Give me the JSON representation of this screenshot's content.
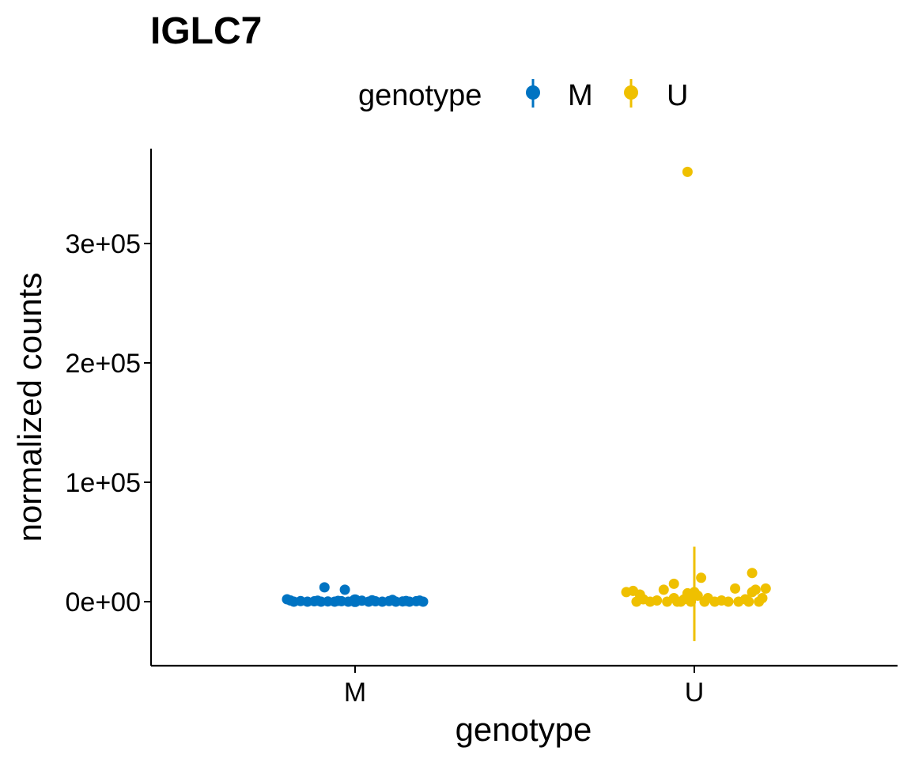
{
  "chart_data": {
    "type": "scatter",
    "title": "IGLC7",
    "xlabel": "genotype",
    "ylabel": "normalized counts",
    "categories": [
      "M",
      "U"
    ],
    "ylim": [
      -55000,
      380000
    ],
    "yticks": [
      0,
      100000,
      200000,
      300000
    ],
    "ytick_labels": [
      "0e+00",
      "1e+05",
      "2e+05",
      "3e+05"
    ],
    "grid": false,
    "legend": {
      "title": "genotype",
      "position": "top",
      "entries": [
        "M",
        "U"
      ]
    },
    "colors": {
      "M": "#0073C2",
      "U": "#EFC000"
    },
    "series": [
      {
        "name": "M",
        "summary": {
          "mean": 800,
          "lower": 0,
          "upper": 1500
        },
        "points": [
          {
            "x": -0.2,
            "y": 2000
          },
          {
            "x": -0.18,
            "y": 0
          },
          {
            "x": -0.16,
            "y": 500
          },
          {
            "x": -0.14,
            "y": 0
          },
          {
            "x": -0.12,
            "y": 300
          },
          {
            "x": -0.1,
            "y": 0
          },
          {
            "x": -0.08,
            "y": 200
          },
          {
            "x": -0.06,
            "y": 0
          },
          {
            "x": -0.09,
            "y": 12000
          },
          {
            "x": -0.04,
            "y": 400
          },
          {
            "x": -0.02,
            "y": 0
          },
          {
            "x": -0.03,
            "y": 10000
          },
          {
            "x": 0.0,
            "y": 0
          },
          {
            "x": 0.02,
            "y": 800
          },
          {
            "x": 0.04,
            "y": 0
          },
          {
            "x": 0.06,
            "y": 300
          },
          {
            "x": 0.08,
            "y": 0
          },
          {
            "x": 0.1,
            "y": 500
          },
          {
            "x": 0.11,
            "y": 1500
          },
          {
            "x": 0.12,
            "y": 0
          },
          {
            "x": 0.14,
            "y": 200
          },
          {
            "x": 0.16,
            "y": 0
          },
          {
            "x": 0.18,
            "y": 400
          },
          {
            "x": 0.2,
            "y": 0
          },
          {
            "x": -0.19,
            "y": 1000
          },
          {
            "x": -0.11,
            "y": 800
          },
          {
            "x": 0.05,
            "y": 1200
          },
          {
            "x": 0.15,
            "y": 600
          },
          {
            "x": 0.19,
            "y": 900
          },
          {
            "x": -0.05,
            "y": 700
          }
        ]
      },
      {
        "name": "U",
        "summary": {
          "mean": 6000,
          "lower": -33000,
          "upper": 46000
        },
        "points": [
          {
            "x": -0.2,
            "y": 8000
          },
          {
            "x": -0.18,
            "y": 9000
          },
          {
            "x": -0.17,
            "y": 0
          },
          {
            "x": -0.16,
            "y": 6000
          },
          {
            "x": -0.15,
            "y": 2000
          },
          {
            "x": -0.13,
            "y": 0
          },
          {
            "x": -0.11,
            "y": 1000
          },
          {
            "x": -0.09,
            "y": 10000
          },
          {
            "x": -0.08,
            "y": 0
          },
          {
            "x": -0.06,
            "y": 3000
          },
          {
            "x": -0.06,
            "y": 15000
          },
          {
            "x": -0.04,
            "y": 0
          },
          {
            "x": -0.03,
            "y": 2000
          },
          {
            "x": -0.02,
            "y": 7000
          },
          {
            "x": -0.01,
            "y": 0
          },
          {
            "x": 0.0,
            "y": 8000
          },
          {
            "x": 0.01,
            "y": 5000
          },
          {
            "x": 0.02,
            "y": 20000
          },
          {
            "x": 0.03,
            "y": 0
          },
          {
            "x": 0.04,
            "y": 3000
          },
          {
            "x": 0.06,
            "y": 0
          },
          {
            "x": 0.08,
            "y": 1000
          },
          {
            "x": 0.1,
            "y": 0
          },
          {
            "x": 0.12,
            "y": 11000
          },
          {
            "x": 0.13,
            "y": 0
          },
          {
            "x": 0.15,
            "y": 2000
          },
          {
            "x": 0.16,
            "y": 0
          },
          {
            "x": 0.18,
            "y": 10000
          },
          {
            "x": 0.19,
            "y": 0
          },
          {
            "x": 0.2,
            "y": 3000
          },
          {
            "x": 0.17,
            "y": 8000
          },
          {
            "x": 0.21,
            "y": 11000
          },
          {
            "x": 0.17,
            "y": 24000
          },
          {
            "x": -0.05,
            "y": 0
          },
          {
            "x": -0.02,
            "y": 360000
          }
        ]
      }
    ]
  }
}
